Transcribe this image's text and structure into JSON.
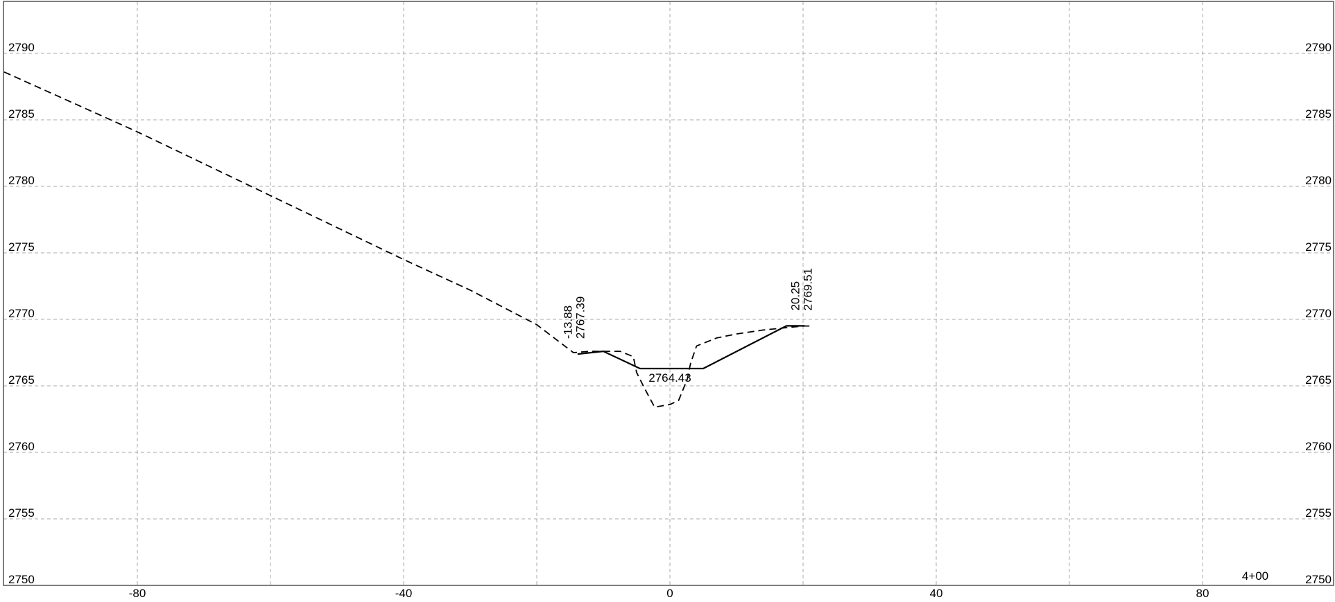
{
  "chart_data": {
    "type": "line",
    "title": "",
    "xlabel": "",
    "ylabel": "",
    "xlim": [
      -100,
      100
    ],
    "ylim": [
      2750,
      2794
    ],
    "grid": true,
    "x_ticks": [
      -80,
      -40,
      0,
      40,
      80
    ],
    "x_gridlines": [
      -80,
      -60,
      -40,
      -20,
      0,
      20,
      40,
      60,
      80
    ],
    "y_ticks": [
      2790,
      2785,
      2780,
      2775,
      2770,
      2765,
      2760,
      2755,
      2750
    ],
    "x_tick_labels": [
      "-80",
      "-40",
      "0",
      "40",
      "80"
    ],
    "y_tick_labels": [
      "2790",
      "2785",
      "2780",
      "2775",
      "2770",
      "2765",
      "2760",
      "2755",
      "2750"
    ],
    "station_label": "4+00",
    "series": [
      {
        "style": "dashed",
        "color": "#000000",
        "x": [
          -100,
          -80,
          -60,
          -40,
          -30,
          -20,
          -14.5,
          -12,
          -10,
          -7.5,
          -5.5,
          -5,
          -3.8,
          -2.3,
          0,
          1.3,
          2.6,
          3.1,
          4,
          7,
          10,
          14,
          18,
          20.25,
          21
        ],
        "y": [
          2788.6,
          2784.1,
          2779.3,
          2774.5,
          2772.2,
          2769.6,
          2767.5,
          2767.6,
          2767.6,
          2767.6,
          2767.2,
          2766.0,
          2764.8,
          2763.4,
          2763.6,
          2763.9,
          2765.5,
          2766.7,
          2768.0,
          2768.6,
          2768.9,
          2769.2,
          2769.4,
          2769.5,
          2769.5
        ]
      },
      {
        "style": "solid",
        "color": "#000000",
        "x": [
          -13.88,
          -10,
          -4.5,
          5,
          17.5,
          20.25
        ],
        "y": [
          2767.39,
          2767.6,
          2766.3,
          2766.3,
          2769.51,
          2769.51
        ]
      }
    ],
    "annotations": [
      {
        "lines": [
          "-13.88",
          "2767.39"
        ],
        "x": -13.88,
        "y": 2767.39,
        "rotated": true
      },
      {
        "lines": [
          "20.25",
          "2769.51"
        ],
        "x": 20.25,
        "y": 2769.51,
        "rotated": true
      },
      {
        "lines": [
          "2764.43"
        ],
        "x": 0,
        "y": 2766.3,
        "rotated": false
      }
    ]
  }
}
